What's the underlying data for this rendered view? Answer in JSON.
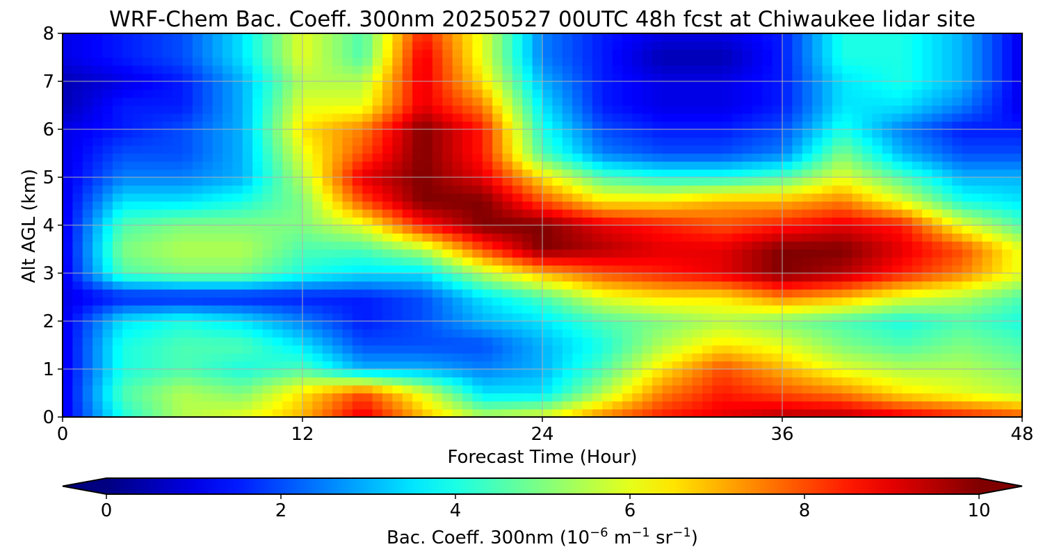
{
  "chart_data": {
    "type": "heatmap",
    "title": "WRF-Chem Bac. Coeff. 300nm  20250527 00UTC 48h fcst at Chiwaukee lidar site",
    "xlabel": "Forecast Time (Hour)",
    "ylabel": "Alt AGL (km)",
    "xlim": [
      0,
      48
    ],
    "ylim": [
      0,
      8
    ],
    "xticks": [
      "0",
      "12",
      "24",
      "36",
      "48"
    ],
    "yticks": [
      "0",
      "1",
      "2",
      "3",
      "4",
      "5",
      "6",
      "7",
      "8"
    ],
    "grid": true,
    "colormap": "jet",
    "colorbar": {
      "orientation": "horizontal",
      "placement": "bottom",
      "extend": "both",
      "range": [
        0,
        10
      ],
      "ticks": [
        "0",
        "2",
        "4",
        "6",
        "8",
        "10"
      ],
      "label_main": "Bac. Coeff. 300nm  (10",
      "label_exp1": "−6",
      "label_mid": " m",
      "label_exp2": "−1",
      "label_mid2": " sr",
      "label_exp3": "−1",
      "label_end": ")"
    },
    "x_hours": [
      0,
      3,
      6,
      9,
      12,
      15,
      18,
      21,
      24,
      27,
      30,
      33,
      36,
      39,
      42,
      45,
      48
    ],
    "y_km": [
      0,
      0.5,
      1,
      1.5,
      2,
      2.5,
      3,
      3.5,
      4,
      4.5,
      5,
      5.5,
      6,
      6.5,
      7,
      7.5,
      8
    ],
    "values_by_altitude": [
      [
        1.0,
        4.0,
        5.5,
        6.0,
        7.0,
        9.0,
        7.0,
        5.5,
        6.0,
        7.5,
        8.5,
        9.0,
        9.5,
        9.5,
        9.0,
        8.5,
        8.0
      ],
      [
        1.0,
        4.5,
        5.5,
        5.0,
        6.5,
        8.0,
        6.0,
        3.5,
        3.5,
        5.5,
        7.5,
        8.5,
        8.0,
        7.5,
        6.5,
        6.0,
        5.5
      ],
      [
        1.0,
        4.0,
        4.5,
        4.0,
        4.5,
        3.0,
        3.0,
        2.5,
        3.0,
        4.5,
        6.5,
        8.0,
        7.0,
        6.0,
        5.5,
        5.5,
        5.0
      ],
      [
        1.0,
        4.0,
        4.5,
        4.5,
        3.5,
        2.0,
        2.0,
        2.0,
        3.0,
        4.0,
        5.5,
        6.5,
        6.0,
        5.0,
        4.5,
        5.0,
        4.5
      ],
      [
        1.0,
        3.5,
        4.0,
        3.5,
        2.5,
        1.5,
        2.0,
        3.0,
        3.5,
        4.5,
        5.0,
        5.5,
        5.0,
        4.5,
        4.0,
        4.5,
        4.0
      ],
      [
        1.0,
        1.5,
        1.5,
        1.5,
        1.5,
        1.5,
        2.0,
        3.5,
        4.5,
        6.0,
        6.5,
        6.5,
        7.5,
        7.0,
        6.0,
        5.5,
        4.5
      ],
      [
        1.0,
        4.5,
        5.0,
        5.0,
        4.0,
        3.5,
        3.5,
        5.5,
        7.0,
        8.0,
        8.5,
        9.0,
        10.0,
        9.5,
        8.5,
        7.5,
        6.0
      ],
      [
        1.0,
        5.0,
        5.5,
        5.5,
        4.5,
        4.5,
        5.5,
        8.0,
        10.0,
        9.5,
        9.0,
        9.0,
        10.0,
        10.0,
        9.0,
        8.0,
        6.0
      ],
      [
        1.0,
        4.5,
        5.0,
        5.0,
        5.0,
        6.0,
        8.5,
        10.0,
        10.0,
        9.0,
        8.5,
        8.0,
        8.5,
        9.0,
        8.5,
        6.0,
        4.5
      ],
      [
        1.0,
        3.5,
        3.5,
        4.0,
        5.0,
        8.0,
        10.0,
        10.0,
        8.0,
        6.5,
        6.5,
        7.0,
        7.0,
        7.5,
        6.0,
        4.0,
        3.5
      ],
      [
        1.0,
        2.5,
        2.5,
        3.0,
        5.5,
        9.0,
        10.0,
        9.0,
        6.5,
        4.5,
        4.0,
        4.0,
        4.5,
        6.0,
        4.5,
        3.0,
        3.0
      ],
      [
        1.0,
        2.0,
        2.0,
        3.0,
        6.0,
        8.0,
        10.0,
        8.5,
        4.5,
        2.5,
        2.0,
        2.0,
        2.5,
        5.0,
        3.0,
        2.0,
        2.0
      ],
      [
        1.0,
        1.5,
        2.0,
        3.0,
        6.5,
        7.5,
        10.0,
        8.5,
        4.0,
        2.0,
        1.5,
        1.5,
        2.0,
        4.0,
        2.5,
        1.5,
        1.5
      ],
      [
        0.5,
        1.5,
        1.5,
        3.0,
        6.0,
        6.0,
        9.0,
        7.5,
        3.5,
        1.5,
        1.0,
        1.0,
        1.5,
        3.5,
        3.5,
        2.5,
        1.0
      ],
      [
        0.5,
        1.0,
        1.5,
        3.0,
        5.5,
        5.5,
        9.0,
        6.5,
        3.0,
        1.5,
        1.0,
        1.0,
        1.5,
        3.5,
        4.0,
        3.0,
        1.0
      ],
      [
        1.0,
        1.5,
        2.0,
        3.5,
        6.0,
        4.5,
        9.0,
        6.0,
        2.5,
        1.5,
        0.5,
        0.5,
        1.5,
        4.0,
        4.0,
        3.0,
        1.0
      ],
      [
        1.0,
        1.5,
        2.0,
        3.5,
        6.0,
        4.5,
        8.5,
        6.0,
        2.5,
        1.5,
        1.0,
        1.0,
        1.5,
        4.0,
        4.0,
        3.0,
        1.0
      ]
    ]
  }
}
